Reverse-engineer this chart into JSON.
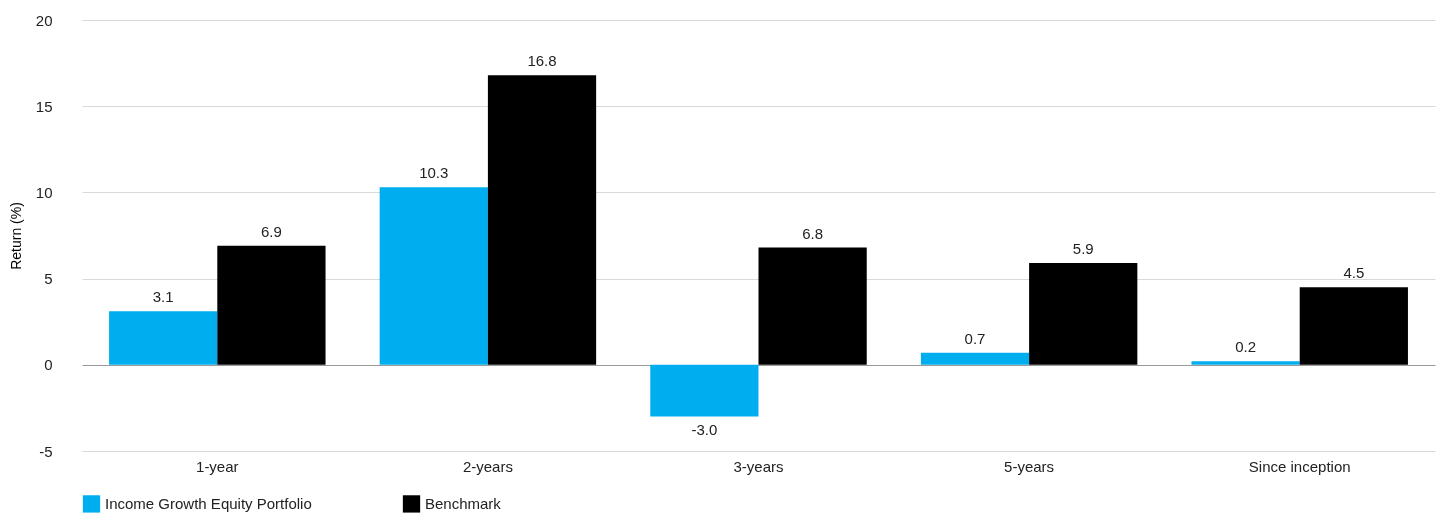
{
  "chart_data": {
    "type": "bar",
    "ylabel": "Return (%)",
    "categories": [
      "1-year",
      "2-years",
      "3-years",
      "5-years",
      "Since inception"
    ],
    "series": [
      {
        "name": "Income Growth Equity Portfolio",
        "color": "#00aeef",
        "values": [
          3.1,
          10.3,
          -3.0,
          0.7,
          0.2
        ],
        "value_labels": [
          "3.1",
          "10.3",
          "-3.0",
          "0.7",
          "0.2"
        ]
      },
      {
        "name": "Benchmark",
        "color": "#000000",
        "values": [
          6.9,
          16.8,
          6.8,
          5.9,
          4.5
        ],
        "value_labels": [
          "6.9",
          "16.8",
          "6.8",
          "5.9",
          "4.5"
        ]
      }
    ],
    "ylim": [
      -5,
      20
    ],
    "yticks": [
      -5,
      0,
      5,
      10,
      15,
      20
    ],
    "grid": "y",
    "legend": "bottom"
  }
}
